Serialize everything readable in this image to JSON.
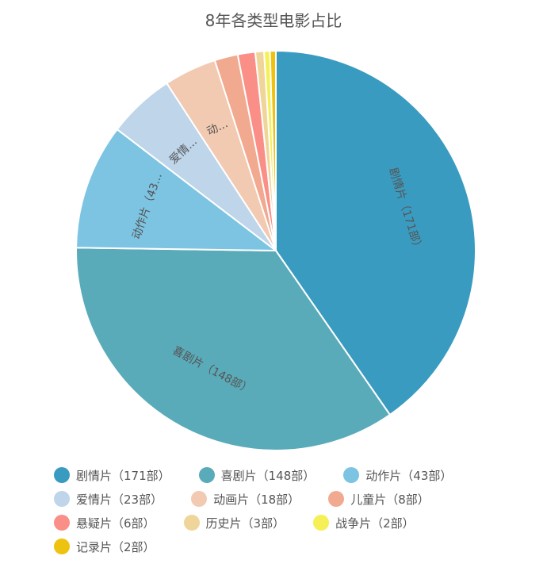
{
  "chart_data": {
    "type": "pie",
    "title": "8年各类型电影占比",
    "start": "top",
    "direction": "clockwise",
    "slices": [
      {
        "name": "剧情片",
        "value": 171,
        "color": "#3a9bc1",
        "legend": "剧情片（171部）",
        "label": "剧情片（171部）"
      },
      {
        "name": "喜剧片",
        "value": 148,
        "color": "#5aabb9",
        "legend": "喜剧片（148部）",
        "label": "喜剧片（148部）"
      },
      {
        "name": "动作片",
        "value": 43,
        "color": "#7cc4e2",
        "legend": "动作片（43部）",
        "label": "动作片（43..."
      },
      {
        "name": "爱情片",
        "value": 23,
        "color": "#bed5ea",
        "legend": "爱情片（23部）",
        "label": "爱情..."
      },
      {
        "name": "动画片",
        "value": 18,
        "color": "#f2c9b1",
        "legend": "动画片（18部）",
        "label": "动..."
      },
      {
        "name": "儿童片",
        "value": 8,
        "color": "#f1a98f",
        "legend": "儿童片（8部）",
        "label": ""
      },
      {
        "name": "悬疑片",
        "value": 6,
        "color": "#f98f87",
        "legend": "悬疑片（6部）",
        "label": ""
      },
      {
        "name": "历史片",
        "value": 3,
        "color": "#f0d59a",
        "legend": "历史片（3部）",
        "label": ""
      },
      {
        "name": "战争片",
        "value": 2,
        "color": "#f5f056",
        "legend": "战争片（2部）",
        "label": ""
      },
      {
        "name": "记录片",
        "value": 2,
        "color": "#eec30f",
        "legend": "记录片（2部）",
        "label": ""
      }
    ],
    "legend_position": "bottom"
  }
}
